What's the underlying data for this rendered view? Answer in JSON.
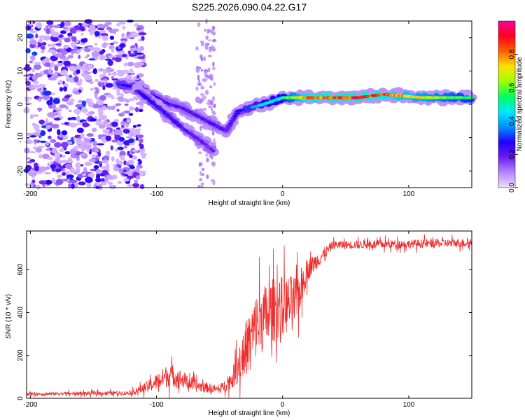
{
  "page_title": "S225.2026.090.04.22.G17",
  "chart_data": [
    {
      "type": "heatmap",
      "title": "S225.2026.090.04.22.G17",
      "xlabel": "Height of straight line (km)",
      "ylabel": "Frequency (Hz)",
      "xlim": [
        -203,
        150
      ],
      "ylim": [
        -25,
        25
      ],
      "x_ticks": [
        -200,
        -100,
        0,
        100
      ],
      "y_ticks": [
        -20,
        -10,
        0,
        10,
        20
      ],
      "colorbar": {
        "label": "Normalized spectral amplitude",
        "range": [
          0,
          1
        ],
        "ticks": [
          0.0,
          0.2,
          0.4,
          0.6,
          0.8
        ],
        "tick_labels": [
          "0.0",
          "0.2",
          "0.4",
          "0.6",
          "0.8"
        ],
        "colors": [
          "#f0dcff",
          "#b486ff",
          "#6a1cf0",
          "#2000ff",
          "#0090ff",
          "#00e8ff",
          "#00ff60",
          "#9cff00",
          "#ffe000",
          "#ff6000",
          "#ff0020",
          "#ff00a0"
        ]
      },
      "ridge": [
        {
          "x": -130,
          "y": 6,
          "amp": 0.3
        },
        {
          "x": -115,
          "y": 5,
          "amp": 0.28
        },
        {
          "x": -100,
          "y": 2,
          "amp": 0.25
        },
        {
          "x": -90,
          "y": 0,
          "amp": 0.22
        },
        {
          "x": -80,
          "y": -1,
          "amp": 0.22
        },
        {
          "x": -70,
          "y": -3,
          "amp": 0.22
        },
        {
          "x": -55,
          "y": -6,
          "amp": 0.22
        },
        {
          "x": -45,
          "y": -8,
          "amp": 0.2
        },
        {
          "x": -35,
          "y": -2,
          "amp": 0.25
        },
        {
          "x": -25,
          "y": -1,
          "amp": 0.35
        },
        {
          "x": -15,
          "y": 0,
          "amp": 0.45
        },
        {
          "x": 0,
          "y": 2,
          "amp": 0.5
        },
        {
          "x": 20,
          "y": 2,
          "amp": 0.85
        },
        {
          "x": 60,
          "y": 2,
          "amp": 0.9
        },
        {
          "x": 80,
          "y": 3,
          "amp": 0.85
        },
        {
          "x": 110,
          "y": 2,
          "amp": 0.7
        },
        {
          "x": 150,
          "y": 2,
          "amp": 0.55
        }
      ],
      "branch": [
        {
          "x": -115,
          "y": 4,
          "amp": 0.25
        },
        {
          "x": -95,
          "y": -2,
          "amp": 0.25
        },
        {
          "x": -80,
          "y": -7,
          "amp": 0.22
        },
        {
          "x": -65,
          "y": -11,
          "amp": 0.2
        },
        {
          "x": -55,
          "y": -14,
          "amp": 0.18
        }
      ],
      "noise_region": {
        "x_range": [
          -203,
          -110
        ],
        "y_range": [
          -25,
          25
        ],
        "amp": 0.1
      }
    },
    {
      "type": "line",
      "title": "",
      "xlabel": "Height of straight line (km)",
      "ylabel": "SNR (10 * v/v)",
      "xlim": [
        -203,
        150
      ],
      "ylim": [
        0,
        780
      ],
      "x_ticks": [
        -200,
        -100,
        0,
        100
      ],
      "y_ticks": [
        0,
        200,
        400,
        600
      ],
      "color": "#ee2b2b",
      "profile": [
        {
          "x": -203,
          "mean": 20,
          "spread": 15
        },
        {
          "x": -120,
          "mean": 25,
          "spread": 20
        },
        {
          "x": -105,
          "mean": 60,
          "spread": 60
        },
        {
          "x": -90,
          "mean": 110,
          "spread": 110
        },
        {
          "x": -80,
          "mean": 90,
          "spread": 80
        },
        {
          "x": -70,
          "mean": 60,
          "spread": 60
        },
        {
          "x": -50,
          "mean": 40,
          "spread": 35
        },
        {
          "x": -40,
          "mean": 90,
          "spread": 90
        },
        {
          "x": -30,
          "mean": 220,
          "spread": 250
        },
        {
          "x": -20,
          "mean": 350,
          "spread": 320
        },
        {
          "x": -5,
          "mean": 420,
          "spread": 300
        },
        {
          "x": 10,
          "mean": 450,
          "spread": 250
        },
        {
          "x": 20,
          "mean": 600,
          "spread": 100
        },
        {
          "x": 40,
          "mean": 715,
          "spread": 40
        },
        {
          "x": 100,
          "mean": 720,
          "spread": 40
        },
        {
          "x": 150,
          "mean": 725,
          "spread": 40
        }
      ]
    }
  ]
}
